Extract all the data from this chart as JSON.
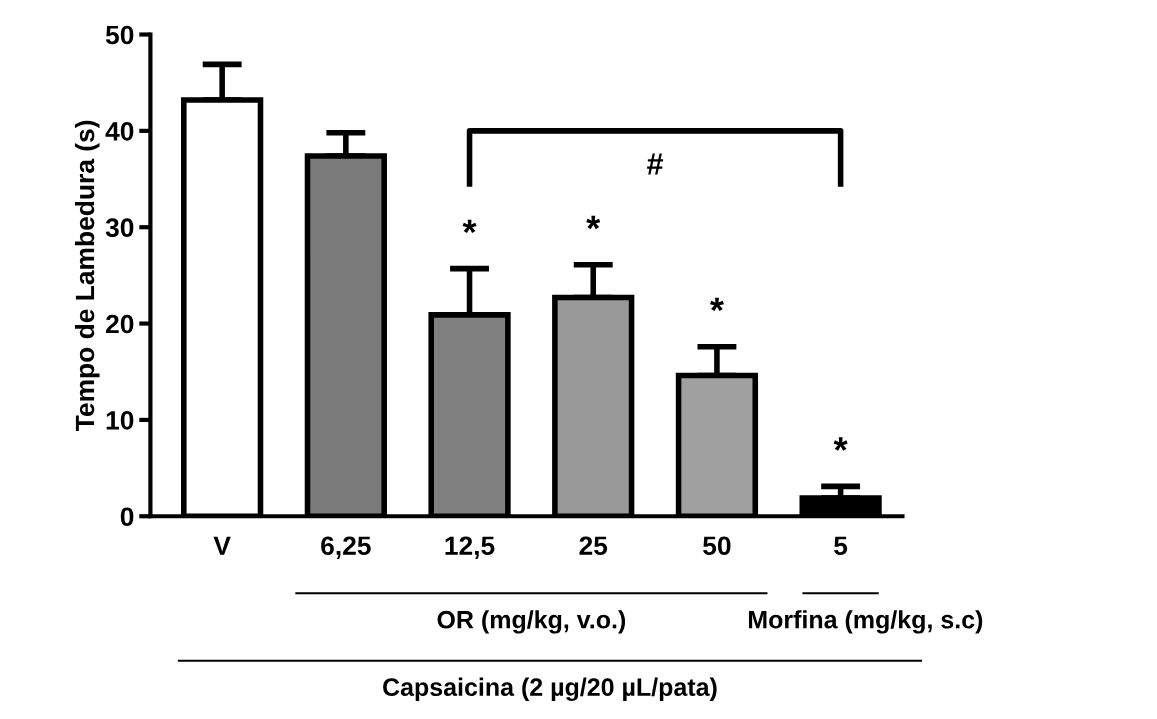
{
  "chart_data": {
    "type": "bar",
    "ylabel": "Tempo de Lambedura (s)",
    "categories": [
      "V",
      "6,25",
      "12,5",
      "25",
      "50",
      "5"
    ],
    "values": [
      43.2,
      37.4,
      20.9,
      22.7,
      14.6,
      1.9
    ],
    "errors": [
      3.7,
      2.4,
      4.8,
      3.4,
      3.0,
      1.2
    ],
    "colors": [
      "#ffffff",
      "#7a7a7a",
      "#808080",
      "#999999",
      "#a0a0a0",
      "#000000"
    ],
    "ylim": [
      0,
      50
    ],
    "yticks": [
      0,
      10,
      20,
      30,
      40,
      50
    ],
    "grid": false,
    "legend": false,
    "annotations": [
      {
        "text": "*",
        "x": "12,5",
        "y": 25.7
      },
      {
        "text": "*",
        "x": "25",
        "y": 26.1
      },
      {
        "text": "*",
        "x": "50",
        "y": 17.6
      },
      {
        "text": "*",
        "x": "5",
        "y": 3.1
      },
      "#",
      "OR (mg/kg, v.o.)",
      "Morfina (mg/kg, s.c)",
      "Capsaicina (2 µg/20 µL/pata)"
    ]
  }
}
